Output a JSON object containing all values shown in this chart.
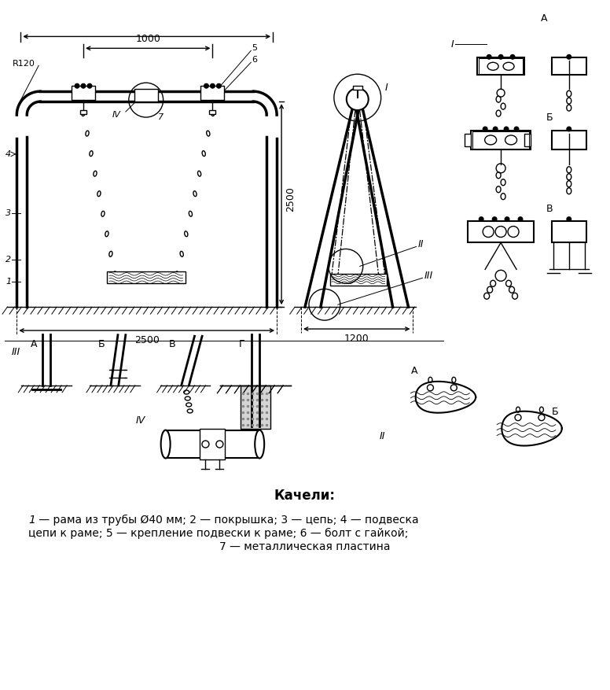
{
  "bg_color": "#ffffff",
  "line_color": "#000000",
  "title": "Качели:",
  "leg1_italic": "1",
  "leg1_normal": " — рама из трубы Ø40 мм; 2 — покрышка; 3 — цепь; 4 — подвеска",
  "leg2": "цепи к раме; 5 — крепление подвески к раме; 6 — болт с гайкой;",
  "leg3": "7 — металлическая пластина"
}
